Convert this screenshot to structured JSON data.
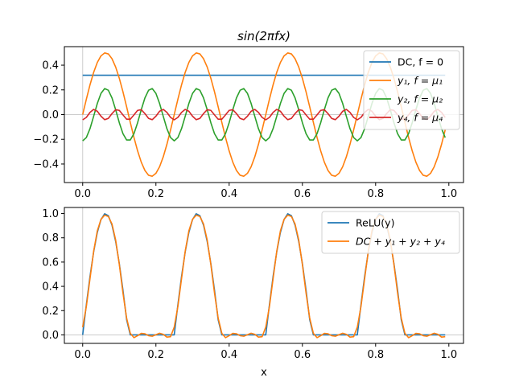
{
  "chart_data": [
    {
      "type": "line",
      "title": "sin(2πfx)",
      "xlabel": "",
      "ylabel": "",
      "xlim": [
        -0.05,
        1.04
      ],
      "ylim": [
        -0.55,
        0.55
      ],
      "xticks": [
        "0.0",
        "0.2",
        "0.4",
        "0.6",
        "0.8",
        "1.0"
      ],
      "xtick_values": [
        0.0,
        0.2,
        0.4,
        0.6,
        0.8,
        1.0
      ],
      "yticks": [
        "−0.4",
        "−0.2",
        "0.0",
        "0.2",
        "0.4"
      ],
      "ytick_values": [
        -0.4,
        -0.2,
        0.0,
        0.2,
        0.4
      ],
      "grid": false,
      "legend_position": "upper-right",
      "series": [
        {
          "name": "DC, f = 0",
          "color": "#1f77b4",
          "kind": "dc",
          "value": 0.3183,
          "x": [
            0.0,
            0.99
          ]
        },
        {
          "name": "y₁, f = μ₁",
          "color": "#ff7f0e",
          "kind": "sin",
          "amplitude": 0.5,
          "frequency": 4,
          "phase": 0,
          "x_start": 0.0,
          "x_step": 0.01,
          "x_end": 0.99
        },
        {
          "name": "y₂, f = μ₂",
          "color": "#2ca02c",
          "kind": "cos",
          "amplitude": -0.2122,
          "frequency": 8,
          "phase": 0,
          "x_start": 0.0,
          "x_step": 0.01,
          "x_end": 0.99
        },
        {
          "name": "y₄, f = μ₄",
          "color": "#d62728",
          "kind": "cos",
          "amplitude": -0.0424,
          "frequency": 16,
          "phase": 0,
          "x_start": 0.0,
          "x_step": 0.01,
          "x_end": 0.99
        }
      ]
    },
    {
      "type": "line",
      "title": "",
      "xlabel": "x",
      "ylabel": "",
      "xlim": [
        -0.05,
        1.04
      ],
      "ylim": [
        -0.07,
        1.05
      ],
      "xticks": [
        "0.0",
        "0.2",
        "0.4",
        "0.6",
        "0.8",
        "1.0"
      ],
      "xtick_values": [
        0.0,
        0.2,
        0.4,
        0.6,
        0.8,
        1.0
      ],
      "yticks": [
        "0.0",
        "0.2",
        "0.4",
        "0.6",
        "0.8",
        "1.0"
      ],
      "ytick_values": [
        0.0,
        0.2,
        0.4,
        0.6,
        0.8,
        1.0
      ],
      "grid": false,
      "legend_position": "upper-right",
      "series": [
        {
          "name": "ReLU(y)",
          "color": "#1f77b4",
          "kind": "relu_sin",
          "amplitude": 1.0,
          "frequency": 4,
          "x_start": 0.0,
          "x_step": 0.01,
          "x_end": 0.99
        },
        {
          "name": "DC + y₁ + y₂ + y₄",
          "color": "#ff7f0e",
          "kind": "sum",
          "x_start": 0.0,
          "x_step": 0.01,
          "x_end": 0.99
        }
      ]
    }
  ],
  "colors": {
    "blue": "#1f77b4",
    "orange": "#ff7f0e",
    "green": "#2ca02c",
    "red": "#d62728",
    "zero_line": "#cccccc"
  }
}
